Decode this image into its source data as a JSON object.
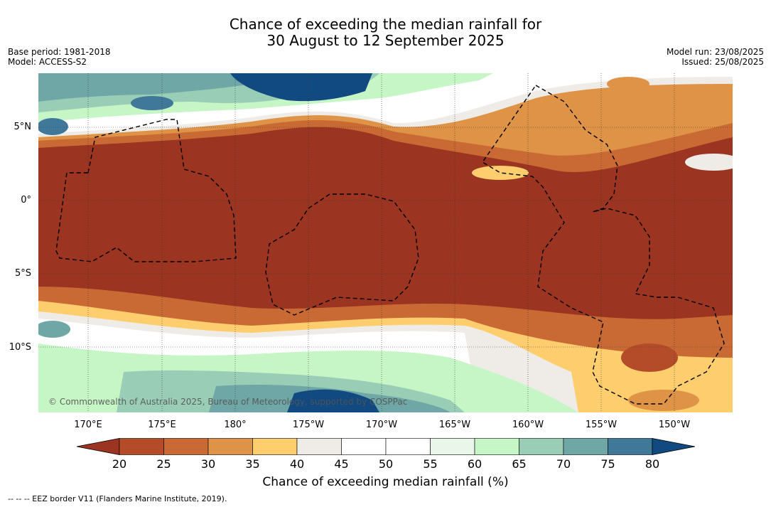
{
  "title_line1": "Chance of exceeding the median rainfall for",
  "title_line2": "30 August to 12 September 2025",
  "base_period": "Base period: 1981-2018",
  "model": "Model: ACCESS-S2",
  "model_run": "Model run: 23/08/2025",
  "issued": "Issued: 25/08/2025",
  "lat_labels": [
    "5°N",
    "0°",
    "5°S",
    "10°S"
  ],
  "lon_labels": [
    "170°E",
    "175°E",
    "180°",
    "175°W",
    "170°W",
    "165°W",
    "160°W",
    "155°W",
    "150°W"
  ],
  "copyright": "© Commonwealth of Australia 2025, Bureau of Meteorology, supported by COSPPac",
  "colorbar": {
    "ticks": [
      "20",
      "25",
      "30",
      "35",
      "40",
      "45",
      "50",
      "55",
      "60",
      "65",
      "70",
      "75",
      "80"
    ],
    "colors": [
      "#9b3420",
      "#b44c2a",
      "#c96a34",
      "#de9347",
      "#fdcd6e",
      "#efebe6",
      "#ffffff",
      "#ffffff",
      "#eaf6ea",
      "#c6f5c6",
      "#9acdb5",
      "#6fa6a6",
      "#3f7898",
      "#104a80"
    ],
    "label": "Chance of exceeding median rainfall (%)"
  },
  "footer": "-- -- -- EEZ border V11 (Flanders Marine Institute, 2019).",
  "palette": {
    "dry": "#9b3420",
    "wet": "#104a80"
  }
}
